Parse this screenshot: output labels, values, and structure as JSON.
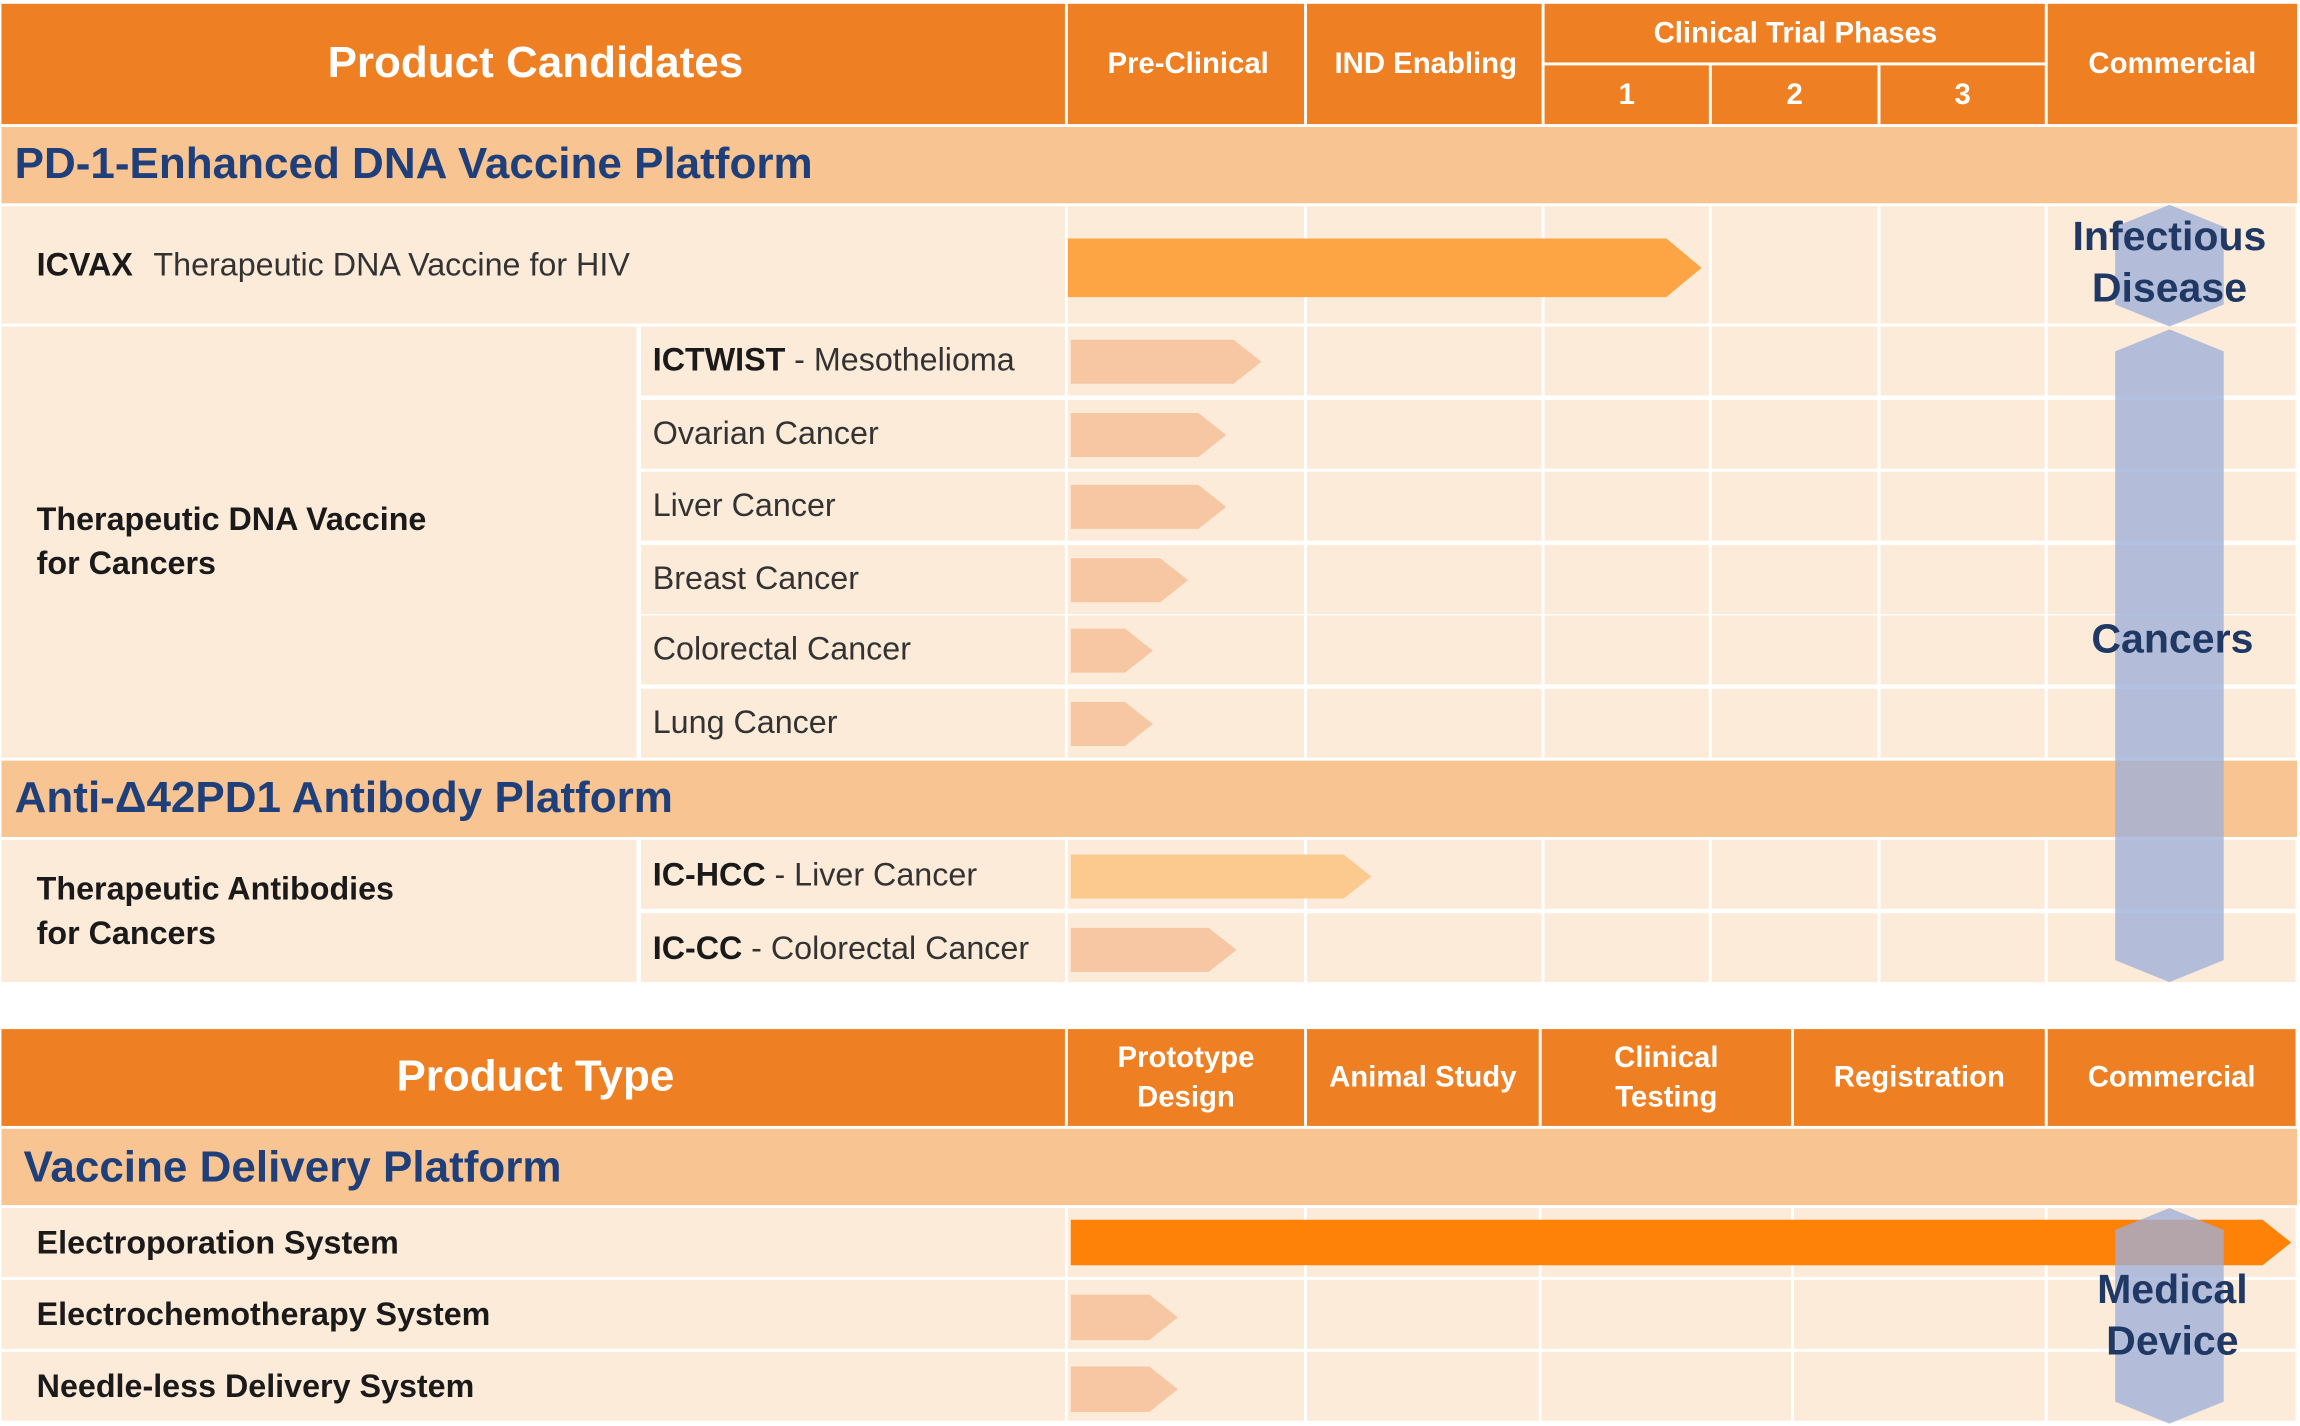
{
  "top_header": {
    "title": "Product Candidates",
    "columns": [
      "Pre-Clinical",
      "IND Enabling"
    ],
    "clinical_title": "Clinical Trial Phases",
    "clinical_phases": [
      "1",
      "2",
      "3"
    ],
    "commercial": "Commercial"
  },
  "platform_1": {
    "title": "PD-1-Enhanced DNA Vaccine Platform",
    "lead": {
      "name": "ICVAX",
      "desc": "Therapeutic DNA Vaccine for HIV"
    },
    "group": [
      "Therapeutic DNA Vaccine",
      "for Cancers"
    ],
    "items": [
      {
        "name": "ICTWIST",
        "indication": "- Mesothelioma"
      },
      {
        "indication": "Ovarian Cancer"
      },
      {
        "indication": "Liver Cancer"
      },
      {
        "indication": "Breast Cancer"
      },
      {
        "indication": "Colorectal Cancer"
      },
      {
        "indication": "Lung Cancer"
      }
    ]
  },
  "platform_2": {
    "title": "Anti-Δ42PD1 Antibody Platform",
    "group": [
      "Therapeutic Antibodies",
      "for Cancers"
    ],
    "items": [
      {
        "name": "IC-HCC",
        "indication": "- Liver Cancer"
      },
      {
        "name": "IC-CC",
        "indication": "- Colorectal Cancer"
      }
    ]
  },
  "markets": {
    "infectious": [
      "Infectious",
      "Disease"
    ],
    "cancers": "Cancers",
    "device": [
      "Medical",
      "Device"
    ]
  },
  "bottom_header": {
    "title": "Product Type",
    "columns": [
      [
        "Prototype",
        "Design"
      ],
      [
        "Animal Study"
      ],
      [
        "Clinical",
        "Testing"
      ],
      [
        "Registration"
      ],
      [
        "Commercial"
      ]
    ]
  },
  "platform_3": {
    "title": "Vaccine Delivery Platform",
    "items": [
      "Electroporation System",
      "Electrochemotherapy System",
      "Needle-less Delivery System"
    ]
  }
}
